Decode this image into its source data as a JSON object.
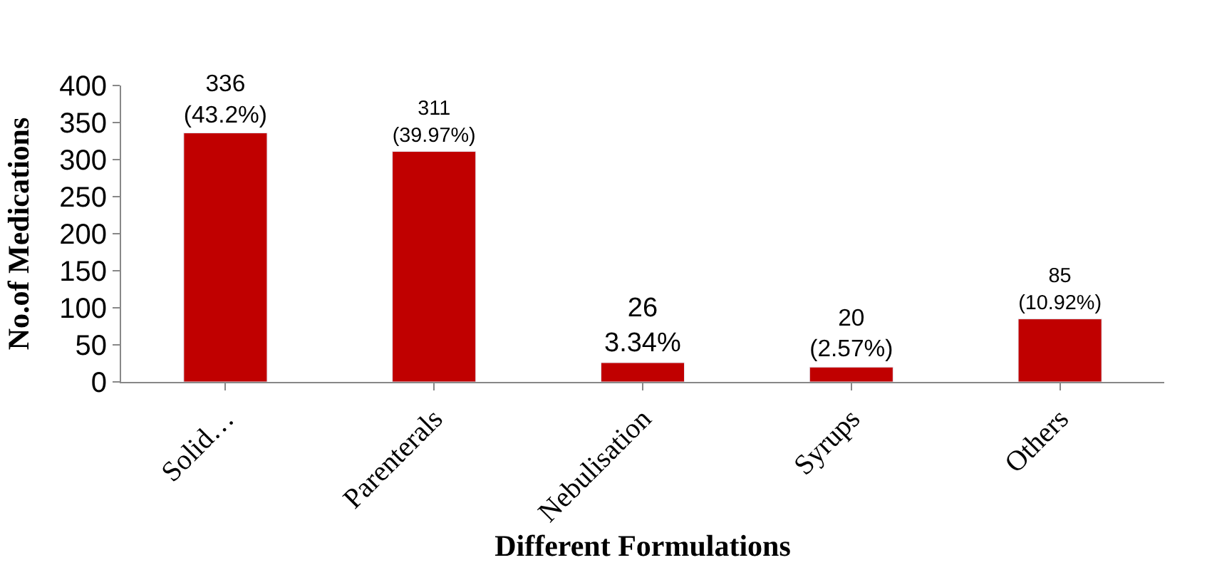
{
  "chart_data": {
    "type": "bar",
    "xlabel": "Different Formulations",
    "ylabel": "No.of Medications",
    "categories": [
      "Solid…",
      "Parenterals",
      "Nebulisation",
      "Syrups",
      "Others"
    ],
    "values": [
      336,
      311,
      26,
      20,
      85
    ],
    "value_labels": [
      "336\n(43.2%)",
      "311\n(39.97%)",
      "26\n3.34%",
      "20\n(2.57%)",
      "85\n(10.92%)"
    ],
    "color": "#c00000",
    "ylim": [
      0,
      400
    ],
    "yticks": [
      0,
      50,
      100,
      150,
      200,
      250,
      300,
      350,
      400
    ],
    "legend": false
  }
}
